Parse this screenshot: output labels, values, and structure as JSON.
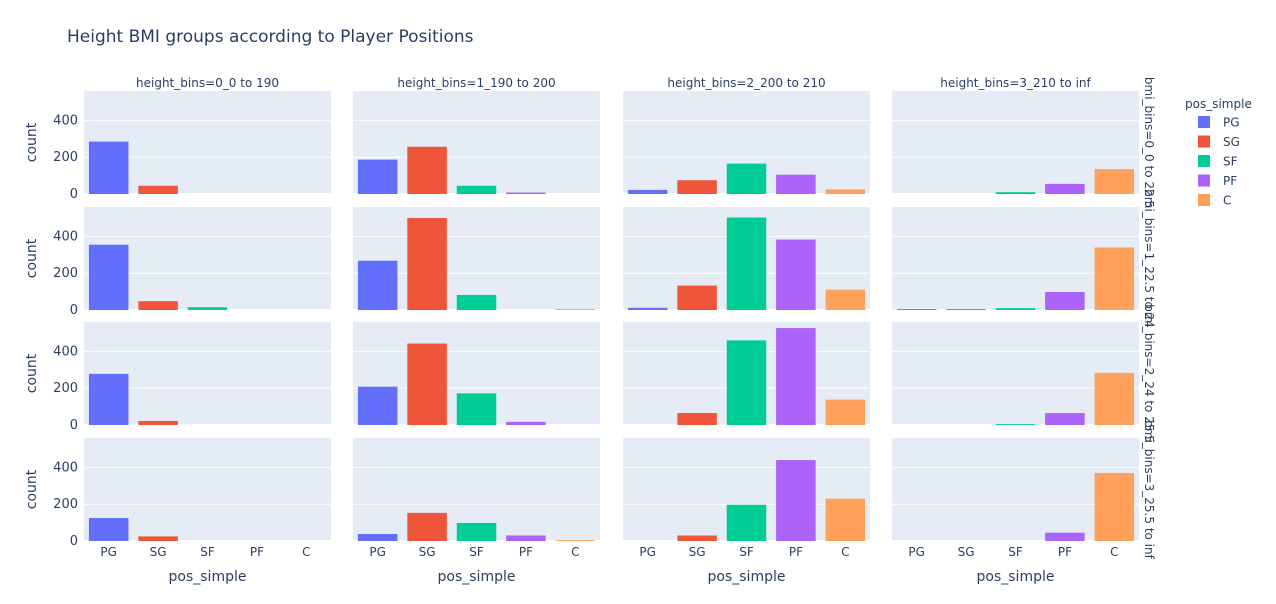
{
  "chart_data": {
    "type": "bar",
    "title": "Height BMI groups according to Player Positions",
    "categories": [
      "PG",
      "SG",
      "SF",
      "PF",
      "C"
    ],
    "xlabel": "pos_simple",
    "ylabel": "count",
    "ylim": [
      0,
      560
    ],
    "yticks": [
      "0",
      "200",
      "400"
    ],
    "col_facets": [
      "height_bins=0_0 to 190",
      "height_bins=1_190 to 200",
      "height_bins=2_200 to 210",
      "height_bins=3_210 to inf"
    ],
    "row_facets": [
      "bmi_bins=0_0 to 22.5",
      "bmi_bins=1_22.5 to 24",
      "bmi_bins=2_24 to 25.5",
      "bmi_bins=3_25.5 to inf"
    ],
    "legend": {
      "title": "pos_simple",
      "placement": "right",
      "items": [
        {
          "name": "PG",
          "color": "#636efa"
        },
        {
          "name": "SG",
          "color": "#ef553b"
        },
        {
          "name": "SF",
          "color": "#00cc96"
        },
        {
          "name": "PF",
          "color": "#ab63fa"
        },
        {
          "name": "C",
          "color": "#ffa15a"
        }
      ]
    },
    "panel_bg": "#e5ecf6",
    "grid": true,
    "values": [
      [
        [
          285,
          45,
          0,
          0,
          0
        ],
        [
          187,
          257,
          45,
          8,
          0
        ],
        [
          22,
          75,
          165,
          105,
          25
        ],
        [
          0,
          0,
          10,
          55,
          135
        ]
      ],
      [
        [
          355,
          48,
          15,
          0,
          0
        ],
        [
          268,
          500,
          82,
          0,
          5
        ],
        [
          12,
          133,
          503,
          383,
          110
        ],
        [
          5,
          5,
          10,
          98,
          340
        ]
      ],
      [
        [
          278,
          22,
          0,
          0,
          0
        ],
        [
          208,
          443,
          172,
          17,
          0
        ],
        [
          0,
          65,
          460,
          527,
          138
        ],
        [
          0,
          0,
          5,
          65,
          283
        ]
      ],
      [
        [
          125,
          25,
          0,
          0,
          0
        ],
        [
          38,
          153,
          98,
          30,
          5
        ],
        [
          0,
          30,
          197,
          440,
          230
        ],
        [
          0,
          0,
          0,
          45,
          370
        ]
      ]
    ]
  }
}
